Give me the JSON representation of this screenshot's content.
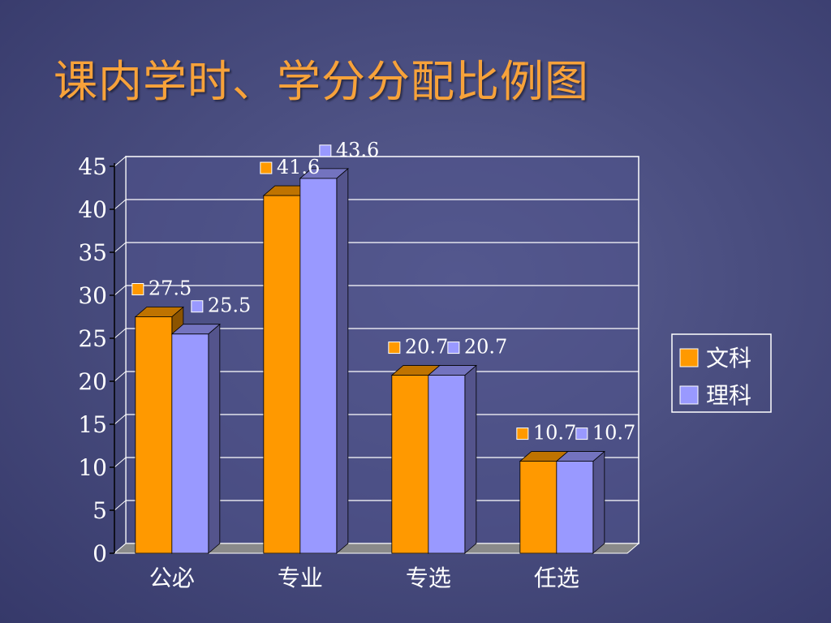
{
  "slide": {
    "title": "课内学时、学分分配比例图"
  },
  "colors": {
    "background": "#4a4e80",
    "title": "#f7a23a",
    "series_wenke": "#ff9900",
    "series_like": "#9999ff",
    "plot_bg": "#4f528a"
  },
  "chart_data": {
    "type": "bar",
    "categories": [
      "公必",
      "专业",
      "专选",
      "任选"
    ],
    "series": [
      {
        "name": "文科",
        "values": [
          27.5,
          41.6,
          20.7,
          10.7
        ],
        "labels": [
          "27.5",
          "41.6",
          "20.7",
          "10.7"
        ]
      },
      {
        "name": "理科",
        "values": [
          25.5,
          43.6,
          20.7,
          10.7
        ],
        "labels": [
          "25.5",
          "43.6",
          "20.7",
          "10.7"
        ]
      }
    ],
    "y_ticks": [
      "0",
      "5",
      "10",
      "15",
      "20",
      "25",
      "30",
      "35",
      "40",
      "45"
    ],
    "ylim": [
      0,
      45
    ],
    "grid": true,
    "three_d": true,
    "legend_position": "right"
  }
}
